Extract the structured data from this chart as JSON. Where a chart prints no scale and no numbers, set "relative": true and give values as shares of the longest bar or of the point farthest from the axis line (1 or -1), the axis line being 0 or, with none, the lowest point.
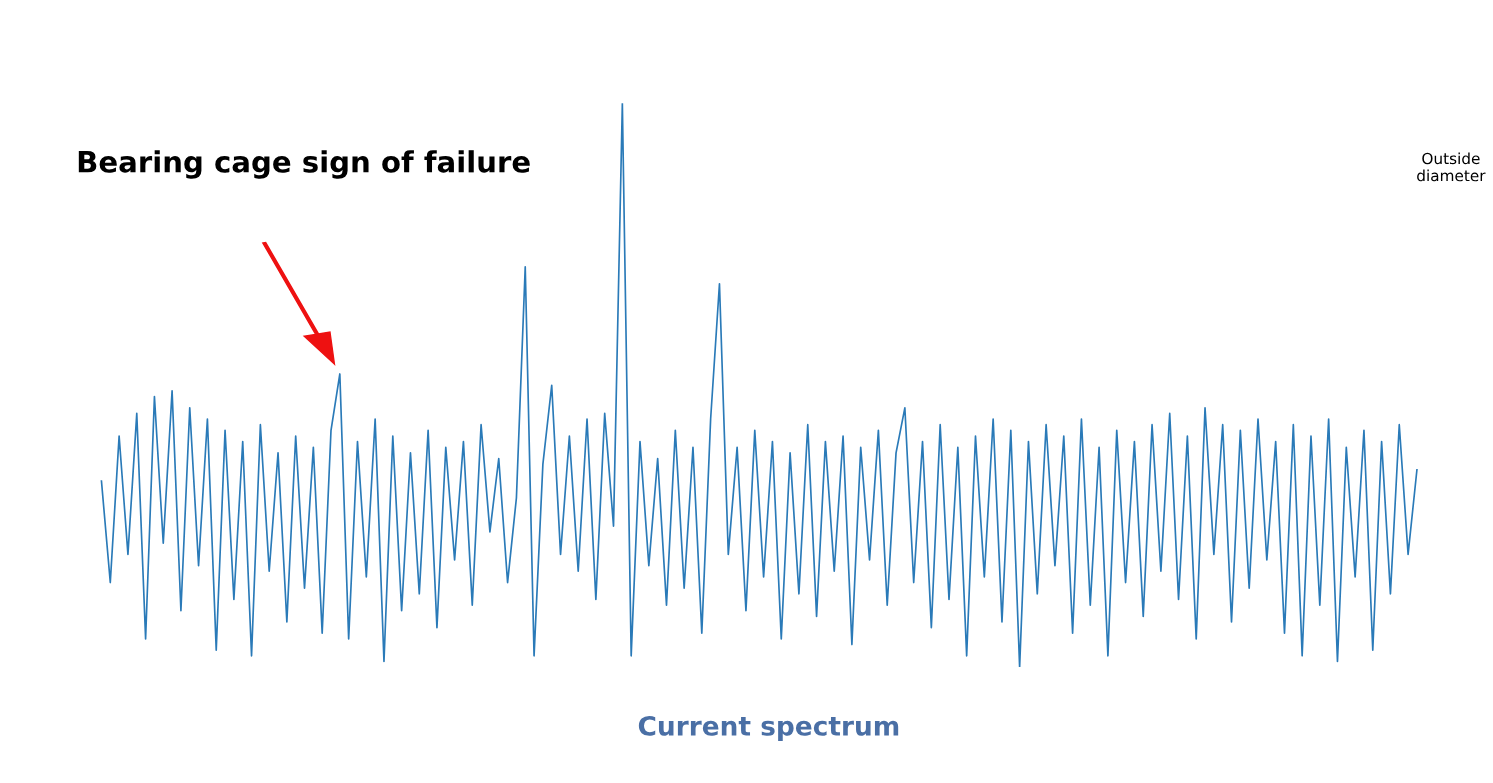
{
  "chart_data": {
    "type": "line",
    "relative": true,
    "title": "Current spectrum",
    "annotations": [
      "Bearing cage sign of failure",
      "Outside diameter"
    ],
    "color": "#2a7ab8",
    "categories": [
      null,
      null,
      null,
      null,
      null,
      null,
      null,
      null,
      null,
      null,
      null,
      null,
      null,
      null,
      null,
      null,
      null,
      null,
      null,
      null,
      null,
      null,
      null,
      null,
      null,
      null,
      null,
      null,
      null,
      null,
      null,
      null,
      null,
      null,
      null,
      null,
      null,
      null,
      null,
      null,
      null,
      null,
      null,
      null,
      null,
      null,
      null,
      null,
      null,
      null,
      null,
      null,
      null,
      null,
      null,
      null,
      null,
      null,
      null,
      null,
      null,
      null,
      null,
      null,
      null,
      null,
      null,
      null,
      null,
      null,
      null,
      null,
      null,
      null,
      null,
      null,
      null,
      null,
      null,
      null,
      null,
      null,
      null,
      null,
      null,
      null,
      null,
      null,
      null,
      null,
      null,
      null,
      null,
      null,
      null,
      null,
      null,
      null,
      null,
      null,
      null,
      null,
      null,
      null,
      null,
      null,
      null,
      null,
      null,
      null,
      null,
      null,
      null,
      null,
      null,
      null,
      null,
      null,
      null,
      null,
      null,
      null,
      null,
      null,
      null,
      null,
      null,
      null,
      null,
      null,
      null,
      null,
      null,
      null,
      null,
      null,
      null,
      null,
      null,
      null,
      null,
      null,
      null,
      null,
      null,
      null,
      null,
      null,
      null,
      null
    ],
    "values": [
      0.33,
      0.15,
      0.41,
      0.2,
      0.45,
      0.05,
      0.48,
      0.22,
      0.49,
      0.1,
      0.46,
      0.18,
      0.44,
      0.03,
      0.42,
      0.12,
      0.4,
      0.02,
      0.43,
      0.17,
      0.38,
      0.08,
      0.41,
      0.14,
      0.39,
      0.06,
      0.42,
      0.52,
      0.05,
      0.4,
      0.16,
      0.44,
      0.01,
      0.41,
      0.1,
      0.38,
      0.13,
      0.42,
      0.07,
      0.39,
      0.19,
      0.4,
      0.11,
      0.43,
      0.24,
      0.37,
      0.15,
      0.3,
      0.71,
      0.02,
      0.36,
      0.5,
      0.2,
      0.41,
      0.17,
      0.44,
      0.12,
      0.45,
      0.25,
      1.0,
      0.02,
      0.4,
      0.18,
      0.37,
      0.11,
      0.42,
      0.14,
      0.39,
      0.06,
      0.44,
      0.68,
      0.2,
      0.39,
      0.1,
      0.42,
      0.16,
      0.4,
      0.05,
      0.38,
      0.13,
      0.43,
      0.09,
      0.4,
      0.17,
      0.41,
      0.04,
      0.39,
      0.19,
      0.42,
      0.11,
      0.38,
      0.46,
      0.15,
      0.4,
      0.07,
      0.43,
      0.12,
      0.39,
      0.02,
      0.41,
      0.16,
      0.44,
      0.08,
      0.42,
      0.0,
      0.4,
      0.13,
      0.43,
      0.18,
      0.41,
      0.06,
      0.44,
      0.11,
      0.39,
      0.02,
      0.42,
      0.15,
      0.4,
      0.09,
      0.43,
      0.17,
      0.45,
      0.12,
      0.41,
      0.05,
      0.46,
      0.2,
      0.43,
      0.08,
      0.42,
      0.14,
      0.44,
      0.19,
      0.4,
      0.06,
      0.43,
      0.02,
      0.41,
      0.11,
      0.44,
      0.01,
      0.39,
      0.16,
      0.42,
      0.03,
      0.4,
      0.13,
      0.43,
      0.2,
      0.35
    ]
  }
}
